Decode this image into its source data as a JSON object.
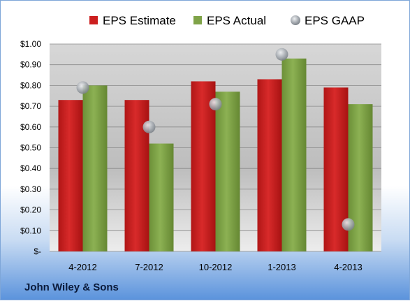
{
  "chart_data": {
    "type": "bar",
    "categories": [
      "4-2012",
      "7-2012",
      "10-2012",
      "1-2013",
      "4-2013"
    ],
    "series": [
      {
        "name": "EPS Estimate",
        "kind": "bar",
        "color": "#cc1f1f",
        "values": [
          0.73,
          0.73,
          0.82,
          0.83,
          0.79
        ]
      },
      {
        "name": "EPS Actual",
        "kind": "bar",
        "color": "#7fa348",
        "values": [
          0.8,
          0.52,
          0.77,
          0.93,
          0.71
        ]
      },
      {
        "name": "EPS GAAP",
        "kind": "marker",
        "color": "#a9aeb4",
        "values": [
          0.79,
          0.6,
          0.71,
          0.95,
          0.13
        ]
      }
    ],
    "ylim": [
      0,
      1.0
    ],
    "yticks": [
      0,
      0.1,
      0.2,
      0.3,
      0.4,
      0.5,
      0.6,
      0.7,
      0.8,
      0.9,
      1.0
    ],
    "ytick_labels": [
      "$-",
      "$0.10",
      "$0.20",
      "$0.30",
      "$0.40",
      "$0.50",
      "$0.60",
      "$0.70",
      "$0.80",
      "$0.90",
      "$1.00"
    ],
    "legend": "top",
    "grid": true
  },
  "footer": {
    "company": "John Wiley & Sons"
  }
}
